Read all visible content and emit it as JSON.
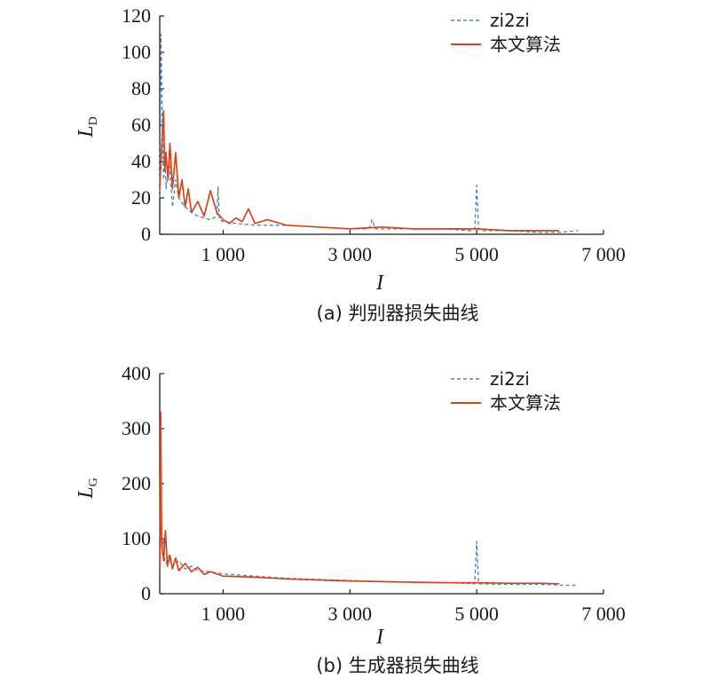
{
  "colors": {
    "zi2zi": "#4a7fc1",
    "ours": "#d0491e",
    "axis": "#1a1a1a"
  },
  "chart_data": [
    {
      "type": "line",
      "id": "a",
      "caption": "(a) 判别器损失曲线",
      "ylabel_main": "L",
      "ylabel_sub": "D",
      "xlabel": "I",
      "xlim": [
        0,
        7000
      ],
      "ylim": [
        0,
        120
      ],
      "xticks": [
        1000,
        3000,
        5000,
        7000
      ],
      "xtick_labels": [
        "1 000",
        "3 000",
        "5 000",
        "7 000"
      ],
      "yticks": [
        0,
        20,
        40,
        60,
        80,
        100,
        120
      ],
      "ytick_labels": [
        "0",
        "20",
        "40",
        "60",
        "80",
        "100",
        "120"
      ],
      "legend_position": "top-right",
      "grid": false,
      "series": [
        {
          "name": "zi2zi",
          "style": "dashed",
          "x": [
            0,
            20,
            40,
            60,
            80,
            100,
            150,
            200,
            250,
            300,
            400,
            500,
            600,
            700,
            800,
            900,
            920,
            940,
            1000,
            1200,
            1500,
            2000,
            2500,
            3000,
            3300,
            3350,
            3400,
            3500,
            4000,
            4500,
            4900,
            4970,
            5000,
            5030,
            5100,
            5500,
            6000,
            6300,
            6600
          ],
          "y": [
            20,
            110,
            60,
            30,
            45,
            25,
            40,
            15,
            30,
            20,
            15,
            12,
            10,
            9,
            8,
            10,
            26,
            8,
            7,
            6,
            5,
            5,
            4,
            3,
            3,
            8,
            3,
            3,
            3,
            3,
            2,
            3,
            27,
            3,
            2,
            2,
            1,
            1,
            2
          ]
        },
        {
          "name": "本文算法",
          "style": "solid",
          "x": [
            0,
            20,
            40,
            60,
            80,
            100,
            130,
            160,
            200,
            250,
            300,
            350,
            400,
            450,
            500,
            600,
            700,
            800,
            900,
            1000,
            1100,
            1200,
            1300,
            1400,
            1500,
            1700,
            2000,
            2500,
            3000,
            3500,
            4000,
            4500,
            5000,
            5500,
            6000,
            6300
          ],
          "y": [
            25,
            40,
            55,
            68,
            35,
            45,
            30,
            50,
            25,
            45,
            20,
            30,
            15,
            25,
            12,
            18,
            10,
            24,
            12,
            8,
            6,
            9,
            7,
            14,
            6,
            8,
            5,
            4,
            3,
            4,
            3,
            3,
            3,
            2,
            2,
            2
          ]
        }
      ]
    },
    {
      "type": "line",
      "id": "b",
      "caption": "(b) 生成器损失曲线",
      "ylabel_main": "L",
      "ylabel_sub": "G",
      "xlabel": "I",
      "xlim": [
        0,
        7000
      ],
      "ylim": [
        0,
        400
      ],
      "xticks": [
        1000,
        3000,
        5000,
        7000
      ],
      "xtick_labels": [
        "1 000",
        "3 000",
        "5 000",
        "7 000"
      ],
      "yticks": [
        0,
        100,
        200,
        300,
        400
      ],
      "ytick_labels": [
        "0",
        "100",
        "200",
        "300",
        "400"
      ],
      "legend_position": "top-right",
      "grid": false,
      "series": [
        {
          "name": "zi2zi",
          "style": "dashed",
          "x": [
            0,
            20,
            40,
            60,
            80,
            100,
            150,
            200,
            300,
            400,
            500,
            600,
            800,
            1000,
            1500,
            2000,
            2500,
            3000,
            3500,
            4000,
            4500,
            4970,
            5000,
            5030,
            5500,
            6000,
            6500,
            6600
          ],
          "y": [
            60,
            150,
            80,
            100,
            60,
            55,
            70,
            50,
            60,
            45,
            50,
            42,
            40,
            36,
            32,
            28,
            26,
            24,
            22,
            21,
            20,
            18,
            95,
            18,
            17,
            17,
            15,
            16
          ]
        },
        {
          "name": "本文算法",
          "style": "solid",
          "x": [
            0,
            15,
            30,
            60,
            90,
            120,
            160,
            200,
            250,
            300,
            400,
            500,
            600,
            700,
            800,
            1000,
            1500,
            2000,
            2500,
            3000,
            3500,
            4000,
            4500,
            5000,
            5500,
            6000,
            6300
          ],
          "y": [
            40,
            330,
            90,
            60,
            115,
            50,
            70,
            45,
            65,
            42,
            55,
            40,
            48,
            35,
            40,
            32,
            30,
            27,
            25,
            23,
            22,
            21,
            20,
            20,
            19,
            19,
            18
          ]
        }
      ]
    }
  ]
}
